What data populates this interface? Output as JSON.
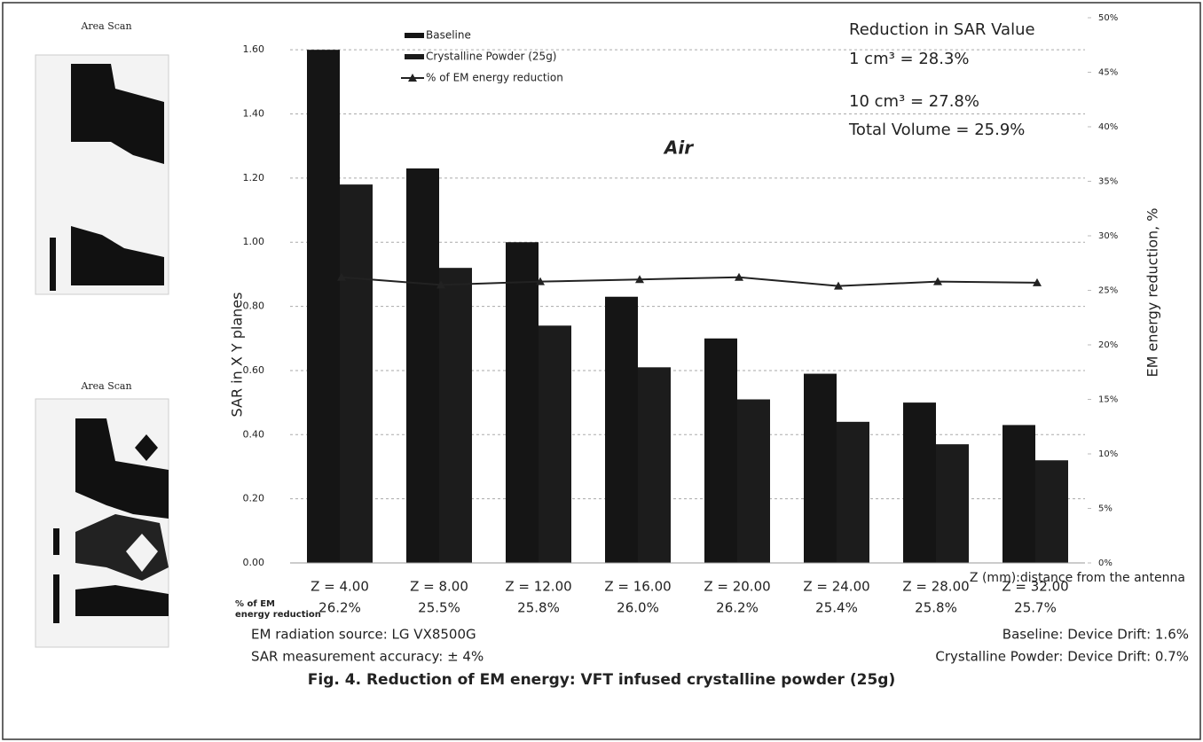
{
  "chart_data": {
    "type": "bar",
    "title": "Air",
    "ylabel": "SAR in X Y planes",
    "y2label": "EM energy reduction, %",
    "xlabel": "Z (mm):distance from the antenna",
    "categories": [
      "Z = 4.00",
      "Z = 8.00",
      "Z = 12.00",
      "Z = 16.00",
      "Z = 20.00",
      "Z = 24.00",
      "Z = 28.00",
      "Z = 32.00"
    ],
    "series": [
      {
        "name": "Baseline",
        "type": "bar",
        "color": "#151515",
        "values": [
          1.6,
          1.23,
          1.0,
          0.83,
          0.7,
          0.59,
          0.5,
          0.43
        ]
      },
      {
        "name": "Crystalline Powder (25g)",
        "type": "bar",
        "color": "#1c1c1c",
        "values": [
          1.18,
          0.92,
          0.74,
          0.61,
          0.51,
          0.44,
          0.37,
          0.32
        ]
      },
      {
        "name": "% of EM energy reduction",
        "type": "line",
        "axis": "y2",
        "color": "#222222",
        "values": [
          26.2,
          25.5,
          25.8,
          26.0,
          26.2,
          25.4,
          25.8,
          25.7
        ],
        "value_labels": [
          "26.2%",
          "25.5%",
          "25.8%",
          "26.0%",
          "26.2%",
          "25.4%",
          "25.8%",
          "25.7%"
        ]
      }
    ],
    "ylim": [
      0,
      1.7
    ],
    "yticks": [
      {
        "value": 0,
        "label": "0.00"
      },
      {
        "value": 0.2,
        "label": "0.20"
      },
      {
        "value": 0.4,
        "label": "0.40"
      },
      {
        "value": 0.6,
        "label": "0.60"
      },
      {
        "value": 0.8,
        "label": "0.80"
      },
      {
        "value": 1.0,
        "label": "1.00"
      },
      {
        "value": 1.2,
        "label": "1.20"
      },
      {
        "value": 1.4,
        "label": "1.40"
      },
      {
        "value": 1.6,
        "label": "1.60"
      }
    ],
    "y2lim": [
      0,
      50
    ],
    "y2ticks": [
      {
        "value": 0,
        "label": "0%"
      },
      {
        "value": 5,
        "label": "5%"
      },
      {
        "value": 10,
        "label": "10%"
      },
      {
        "value": 15,
        "label": "15%"
      },
      {
        "value": 20,
        "label": "20%"
      },
      {
        "value": 25,
        "label": "25%"
      },
      {
        "value": 30,
        "label": "30%"
      },
      {
        "value": 35,
        "label": "35%"
      },
      {
        "value": 40,
        "label": "40%"
      },
      {
        "value": 45,
        "label": "45%"
      },
      {
        "value": 50,
        "label": "50%"
      }
    ],
    "grid": true,
    "legend": "upper left",
    "annotation": [
      "Reduction in SAR Value",
      "1 cm³ = 28.3%",
      "10 cm³ = 27.8%",
      "Total Volume = 25.9%"
    ],
    "table_label": [
      "% of EM",
      "energy reduction"
    ],
    "notes_left": [
      "EM  radiation source: LG VX8500G",
      "SAR measurement accuracy:  ± 4%"
    ],
    "notes_right": [
      "Baseline:  Device Drift: 1.6%",
      "Crystalline Powder:  Device Drift: 0.7%"
    ],
    "caption": "Fig. 4.  Reduction of EM energy:  VFT infused crystalline powder (25g)",
    "thumbnail_labels": [
      "Area Scan",
      "Area Scan"
    ]
  }
}
